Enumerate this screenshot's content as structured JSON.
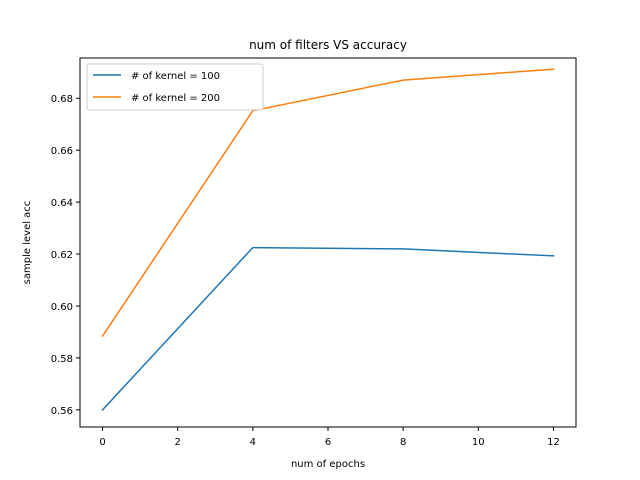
{
  "chart_data": {
    "type": "line",
    "title": "num of filters VS accuracy",
    "xlabel": "num of epochs",
    "ylabel": "sample level acc",
    "xlim": [
      -0.6,
      12.6
    ],
    "ylim": [
      0.5534,
      0.6955
    ],
    "xticks": [
      0,
      2,
      4,
      6,
      8,
      10,
      12
    ],
    "xtick_labels": [
      "0",
      "2",
      "4",
      "6",
      "8",
      "10",
      "12"
    ],
    "yticks": [
      0.56,
      0.58,
      0.6,
      0.62,
      0.64,
      0.66,
      0.68
    ],
    "ytick_labels": [
      "0.56",
      "0.58",
      "0.60",
      "0.62",
      "0.64",
      "0.66",
      "0.68"
    ],
    "grid": false,
    "legend_position": "top-left",
    "series": [
      {
        "name": "# of kernel = 100",
        "color": "#1f77b4",
        "x": [
          0,
          4,
          8,
          12
        ],
        "y": [
          0.56,
          0.6225,
          0.622,
          0.6193
        ]
      },
      {
        "name": "# of kernel = 200",
        "color": "#ff7f0e",
        "x": [
          0,
          4,
          8,
          12
        ],
        "y": [
          0.5884,
          0.6752,
          0.687,
          0.6912
        ]
      }
    ]
  }
}
